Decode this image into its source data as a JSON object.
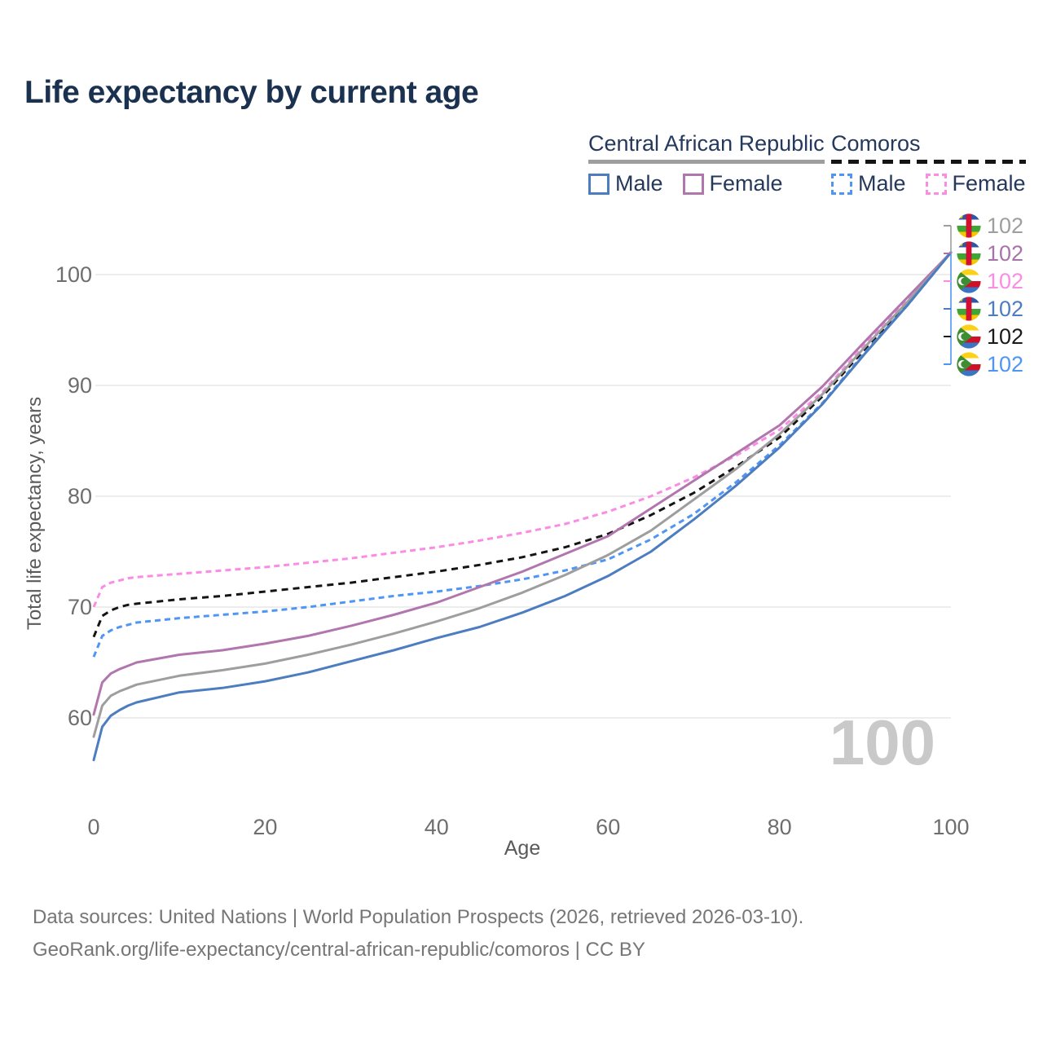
{
  "title": "Life expectancy by current age",
  "legend": {
    "car": {
      "label": "Central African Republic",
      "male": "Male",
      "female": "Female"
    },
    "comoros": {
      "label": "Comoros",
      "male": "Male",
      "female": "Female"
    }
  },
  "footer": {
    "line1": "Data sources: United Nations | World Population Prospects (2026, retrieved 2026-03-10).",
    "line2": "GeoRank.org/life-expectancy/central-african-republic/comoros | CC BY"
  },
  "chart_data": {
    "type": "line",
    "title": "Life expectancy by current age",
    "xlabel": "Age",
    "ylabel": "Total life expectancy, years",
    "xlim": [
      0,
      100
    ],
    "ylim": [
      55,
      103
    ],
    "xticks": [
      0,
      20,
      40,
      60,
      80,
      100
    ],
    "yticks": [
      60,
      70,
      80,
      90,
      100
    ],
    "grid": "horizontal",
    "legend_position": "top-right",
    "watermark": "100",
    "x": [
      0,
      1,
      2,
      3,
      4,
      5,
      10,
      15,
      20,
      25,
      30,
      35,
      40,
      45,
      50,
      55,
      60,
      65,
      70,
      75,
      80,
      85,
      90,
      95,
      100
    ],
    "series": [
      {
        "name": "comoros-female",
        "country": "Comoros",
        "sex": "Female",
        "color": "#fb8ce4",
        "style": "dashed",
        "dash": "7 5",
        "values": [
          70.0,
          71.8,
          72.2,
          72.4,
          72.6,
          72.7,
          73.0,
          73.3,
          73.6,
          74.0,
          74.4,
          74.9,
          75.4,
          76.0,
          76.7,
          77.5,
          78.6,
          80.0,
          81.7,
          83.7,
          86.0,
          89.4,
          93.7,
          97.8,
          102
        ]
      },
      {
        "name": "comoros-total",
        "country": "Comoros",
        "sex": "Both",
        "color": "#141414",
        "style": "dashed",
        "dash": "8 6",
        "values": [
          67.3,
          69.2,
          69.7,
          70.0,
          70.2,
          70.3,
          70.7,
          71.0,
          71.4,
          71.8,
          72.2,
          72.7,
          73.2,
          73.8,
          74.5,
          75.4,
          76.6,
          78.3,
          80.3,
          82.7,
          85.3,
          89.0,
          93.3,
          97.5,
          102
        ]
      },
      {
        "name": "comoros-male",
        "country": "Comoros",
        "sex": "Male",
        "color": "#4e95f5",
        "style": "dashed",
        "dash": "7 5",
        "values": [
          65.5,
          67.4,
          67.9,
          68.2,
          68.4,
          68.6,
          69.0,
          69.3,
          69.6,
          70.0,
          70.5,
          71.0,
          71.4,
          71.9,
          72.5,
          73.3,
          74.3,
          76.1,
          78.4,
          81.3,
          84.6,
          88.4,
          93.0,
          97.3,
          102
        ]
      },
      {
        "name": "car-female",
        "country": "Central African Republic",
        "sex": "Female",
        "color": "#b176ae",
        "style": "solid",
        "dash": null,
        "values": [
          60.3,
          63.2,
          64.0,
          64.4,
          64.7,
          65.0,
          65.7,
          66.1,
          66.7,
          67.4,
          68.3,
          69.3,
          70.4,
          71.8,
          73.2,
          74.8,
          76.4,
          78.9,
          81.4,
          83.9,
          86.4,
          89.9,
          94.0,
          98.0,
          102
        ]
      },
      {
        "name": "car-total",
        "country": "Central African Republic",
        "sex": "Both",
        "color": "#9e9e9e",
        "style": "solid",
        "dash": null,
        "values": [
          58.3,
          61.1,
          62.0,
          62.4,
          62.7,
          63.0,
          63.8,
          64.3,
          64.9,
          65.7,
          66.6,
          67.6,
          68.7,
          69.9,
          71.3,
          72.9,
          74.7,
          76.9,
          79.7,
          82.5,
          85.6,
          89.2,
          93.5,
          97.6,
          102
        ]
      },
      {
        "name": "car-male",
        "country": "Central African Republic",
        "sex": "Male",
        "color": "#4c7dc0",
        "style": "solid",
        "dash": null,
        "values": [
          56.2,
          59.2,
          60.2,
          60.7,
          61.1,
          61.4,
          62.3,
          62.7,
          63.3,
          64.1,
          65.1,
          66.1,
          67.2,
          68.2,
          69.5,
          71.0,
          72.8,
          75.0,
          77.9,
          81.0,
          84.4,
          88.3,
          92.9,
          97.3,
          102
        ]
      }
    ],
    "end_labels": [
      {
        "name": "car-total",
        "value": "102",
        "flag": "car",
        "color": "#9e9e9e"
      },
      {
        "name": "car-female",
        "value": "102",
        "flag": "car",
        "color": "#a873a8"
      },
      {
        "name": "comoros-female",
        "value": "102",
        "flag": "comoros",
        "color": "#fb8ce4"
      },
      {
        "name": "car-male",
        "value": "102",
        "flag": "car",
        "color": "#4c7dc0"
      },
      {
        "name": "comoros-total",
        "value": "102",
        "flag": "comoros",
        "color": "#1a1a1a"
      },
      {
        "name": "comoros-male",
        "value": "102",
        "flag": "comoros",
        "color": "#4e95f5"
      }
    ]
  }
}
